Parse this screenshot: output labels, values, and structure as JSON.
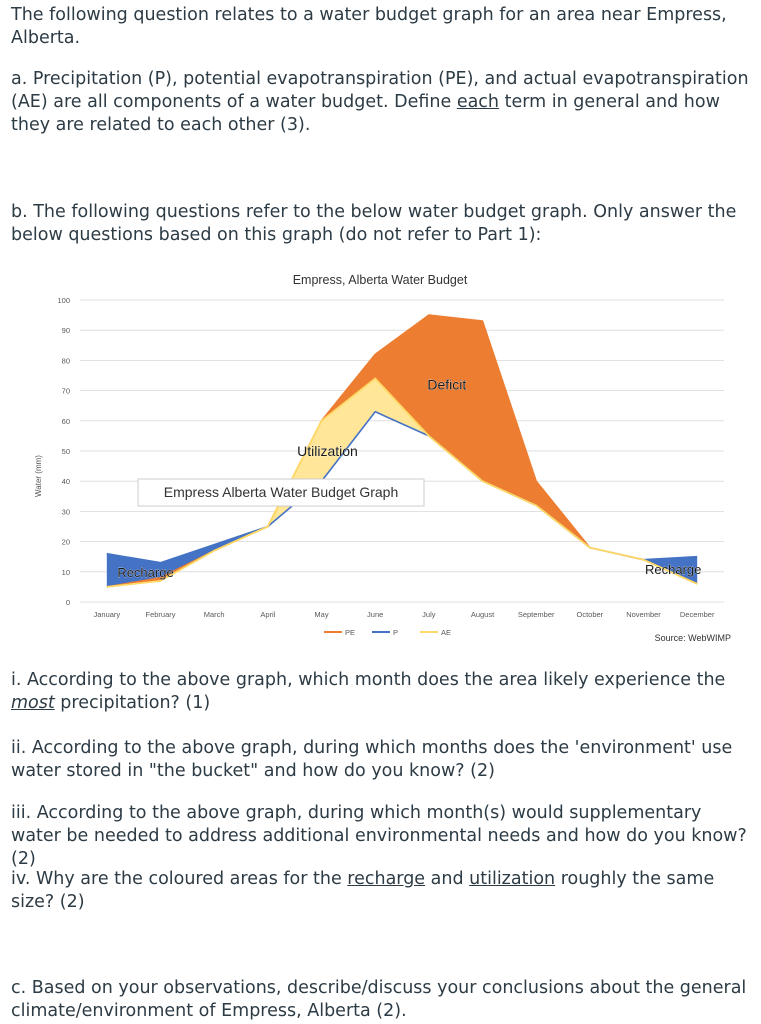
{
  "intro": {
    "line1": "The following question relates to a water budget graph for an area near Empress,",
    "line2": "Alberta."
  },
  "part_a": {
    "text_before": "a. Precipitation (P), potential evapotranspiration (PE), and actual evapotranspiration (AE) are all components of a water budget. Define ",
    "emphasis": "each",
    "text_after": " term in general and how they are related to each other (3)."
  },
  "part_b": {
    "text": "b. The following questions refer to the below water budget graph. Only answer the below questions based on this graph (do not refer to Part 1):"
  },
  "chart_data": {
    "type": "area",
    "title": "Empress, Alberta Water Budget",
    "ylabel": "Water (mm)",
    "xlabel": "",
    "ylim": [
      0,
      100
    ],
    "yticks": [
      0,
      10,
      20,
      30,
      40,
      50,
      60,
      70,
      80,
      90,
      100
    ],
    "grid": true,
    "legend_placement": "bottom",
    "categories": [
      "January",
      "February",
      "March",
      "April",
      "May",
      "June",
      "July",
      "August",
      "September",
      "October",
      "November",
      "December"
    ],
    "series": [
      {
        "name": "PE",
        "color": "#ed7d31",
        "values": [
          5,
          8,
          17,
          25,
          60,
          82,
          95,
          93,
          40,
          18,
          14,
          6
        ]
      },
      {
        "name": "P",
        "color": "#4472c4",
        "values": [
          16,
          13,
          19,
          25,
          40,
          63,
          55,
          40,
          32,
          18,
          14,
          15
        ]
      },
      {
        "name": "AE",
        "color": "#ffe699",
        "values": [
          5,
          7,
          17,
          25,
          60,
          74,
          55,
          40,
          32,
          18,
          14,
          6
        ]
      }
    ],
    "annotations": [
      {
        "text": "Deficit",
        "month": "July",
        "value": 72
      },
      {
        "text": "Utilization",
        "month": "May",
        "value": 50
      },
      {
        "text": "Recharge",
        "month": "February",
        "value": 10
      },
      {
        "text": "Recharge",
        "month": "December",
        "value": 11
      }
    ],
    "caption": "Empress Alberta Water Budget Graph",
    "source": "Source: WebWIMP",
    "colors": {
      "recharge": "#4472c4",
      "utilization": "#ffe699",
      "deficit": "#ed7d31",
      "grid": "#d9d9d9"
    }
  },
  "questions": {
    "i": {
      "before": "i. According to the above graph, which month does the area likely experience the ",
      "emphasis": "most",
      "after": " precipitation? (1)"
    },
    "ii": {
      "text": "ii. According to the above graph, during which months does the 'environment' use water stored in \"the bucket\" and how do you know? (2)"
    },
    "iii": {
      "text": "iii. According to the above graph, during which month(s) would supplementary water be needed to address additional environmental needs and how do you know? (2)"
    },
    "iv": {
      "before": "iv. Why are the coloured areas for the ",
      "em1": "recharge",
      "mid": " and ",
      "em2": "utilization",
      "after": " roughly the same size? (2)"
    }
  },
  "part_c": {
    "text": "c. Based on your observations, describe/discuss your conclusions about the general climate/environment of Empress, Alberta (2)."
  }
}
